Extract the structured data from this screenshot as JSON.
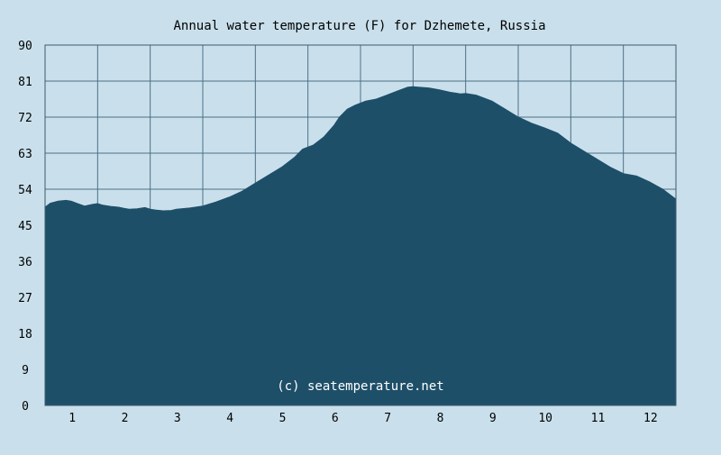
{
  "chart_data": {
    "type": "area",
    "title": "Annual water temperature (F) for Dzhemete, Russia",
    "watermark": "(c) seatemperature.net",
    "xlabel": "",
    "ylabel": "",
    "ylim": [
      0,
      90
    ],
    "xlim": [
      0.5,
      12.5
    ],
    "y_ticks": [
      0,
      9,
      18,
      27,
      36,
      45,
      54,
      63,
      72,
      81,
      90
    ],
    "x_ticks": [
      1,
      2,
      3,
      4,
      5,
      6,
      7,
      8,
      9,
      10,
      11,
      12
    ],
    "grid": true,
    "colors": {
      "background": "#c9e0ec",
      "fill": "#1e4f69",
      "grid": "#4d6f86",
      "axis": "#3d5a6e"
    },
    "series": [
      {
        "x": [
          0.5,
          0.6,
          0.75,
          0.9,
          1.0,
          1.1,
          1.25,
          1.4,
          1.5,
          1.6,
          1.75,
          1.9,
          2.0,
          2.1,
          2.25,
          2.4,
          2.5,
          2.6,
          2.75,
          2.9,
          3.0,
          3.25,
          3.5,
          3.75,
          4.0,
          4.25,
          4.5,
          4.75,
          5.0,
          5.25,
          5.4,
          5.6,
          5.8,
          6.0,
          6.1,
          6.25,
          6.4,
          6.6,
          6.8,
          7.0,
          7.2,
          7.4,
          7.5,
          7.6,
          7.8,
          8.0,
          8.2,
          8.4,
          8.5,
          8.7,
          9.0,
          9.25,
          9.5,
          9.75,
          10.0,
          10.25,
          10.5,
          10.75,
          11.0,
          11.25,
          11.5,
          11.75,
          12.0,
          12.25,
          12.5
        ],
        "values": [
          49.5,
          50.5,
          51.0,
          51.2,
          51.0,
          50.5,
          49.8,
          50.2,
          50.4,
          50.0,
          49.7,
          49.5,
          49.2,
          49.0,
          49.1,
          49.4,
          49.0,
          48.8,
          48.6,
          48.7,
          49.0,
          49.3,
          49.8,
          50.8,
          52.0,
          53.5,
          55.5,
          57.5,
          59.5,
          62.0,
          64.0,
          65.0,
          67.0,
          70.0,
          72.0,
          74.0,
          75.0,
          76.0,
          76.5,
          77.5,
          78.5,
          79.5,
          79.6,
          79.5,
          79.3,
          78.8,
          78.2,
          77.8,
          77.9,
          77.5,
          76.0,
          74.0,
          72.0,
          70.5,
          69.3,
          68.0,
          65.5,
          63.5,
          61.5,
          59.5,
          57.9,
          57.3,
          55.8,
          54.0,
          51.5
        ]
      }
    ]
  }
}
